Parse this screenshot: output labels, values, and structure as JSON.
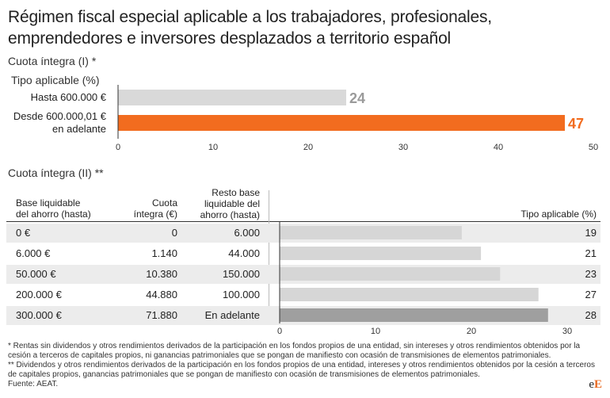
{
  "title_line1": "Régimen fiscal especial aplicable a los trabajadores, profesionales,",
  "title_line2": "emprendedores e inversores desplazados a territorio español",
  "chart_data": [
    {
      "type": "bar",
      "orientation": "horizontal",
      "title": "Cuota íntegra (I) *",
      "subtitle": "Tipo aplicable (%)",
      "categories": [
        "Hasta 600.000 €",
        "Desde 600.000,01 € en adelante"
      ],
      "category_lines": [
        [
          "Hasta 600.000 €"
        ],
        [
          "Desde 600.000,01 €",
          "en adelante"
        ]
      ],
      "values": [
        24,
        47
      ],
      "colors": [
        "#d9d9d9",
        "#f26c1f"
      ],
      "value_label_colors": [
        "#9a9a9a",
        "#f26c1f"
      ],
      "xlim": [
        0,
        50
      ],
      "xticks": [
        0,
        10,
        20,
        30,
        40,
        50
      ]
    },
    {
      "type": "table",
      "title": "Cuota íntegra (II) **",
      "columns": [
        [
          "Base liquidable",
          "del ahorro (hasta)"
        ],
        [
          "Cuota",
          "íntegra (€)"
        ],
        [
          "Resto base",
          "liquidable del",
          "ahorro (hasta)"
        ],
        [
          "Tipo aplicable (%)"
        ]
      ],
      "rows": [
        {
          "base": "0 €",
          "cuota": "0",
          "resto": "6.000",
          "tipo": 19
        },
        {
          "base": "6.000 €",
          "cuota": "1.140",
          "resto": "44.000",
          "tipo": 21
        },
        {
          "base": "50.000 €",
          "cuota": "10.380",
          "resto": "150.000",
          "tipo": 23
        },
        {
          "base": "200.000 €",
          "cuota": "44.880",
          "resto": "100.000",
          "tipo": 27
        },
        {
          "base": "300.000 €",
          "cuota": "71.880",
          "resto": "En adelante",
          "tipo": 28
        }
      ],
      "bar_colors": [
        "#d6d6d6",
        "#d6d6d6",
        "#d6d6d6",
        "#d6d6d6",
        "#9f9f9f"
      ],
      "xlim": [
        0,
        30
      ],
      "xticks": [
        0,
        10,
        20,
        30
      ]
    }
  ],
  "footnote1": "* Rentas sin dividendos y otros rendimientos derivados de la participación en los fondos propios de una entidad, sin intereses y otros rendimientos obtenidos por la cesión a terceros de capitales propios, ni ganancias patrimoniales que se pongan de manifiesto con ocasión de transmisiones de elementos patrimoniales.",
  "footnote2": "** Dividendos y otros rendimientos derivados de la participación en los fondos propios de una entidad, intereses y otros rendimientos obtenidos por la cesión a terceros de capitales propios, ganancias patrimoniales que se pongan de manifiesto con ocasión de transmisiones de elementos patrimoniales.",
  "source": "Fuente: AEAT.",
  "logo": {
    "part1": "e",
    "part2": "E"
  }
}
